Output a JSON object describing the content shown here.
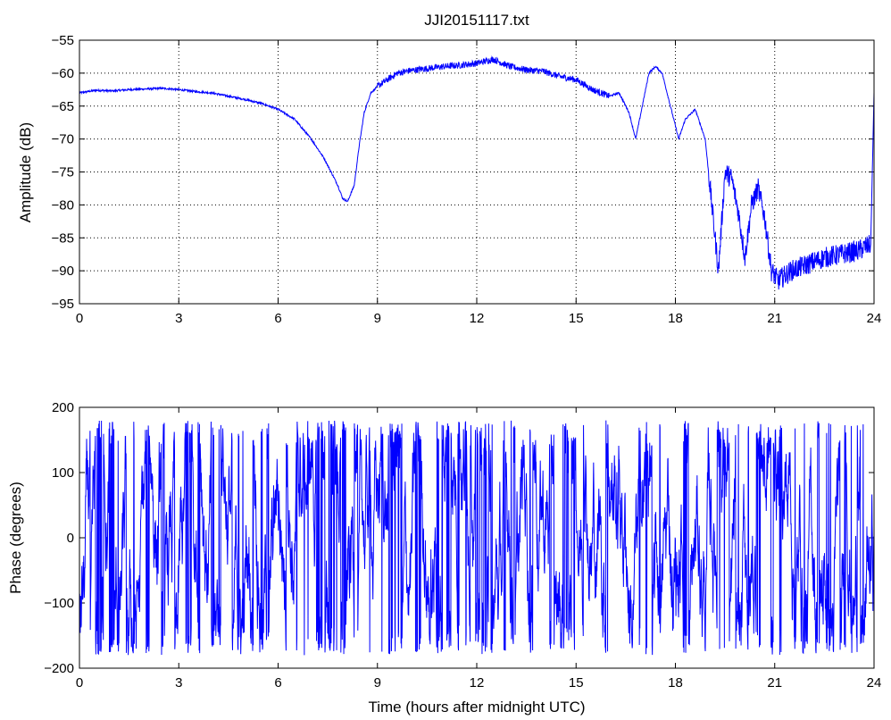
{
  "colors": {
    "line": "#0000ff",
    "axis": "#000000",
    "grid": "#000000",
    "background": "#ffffff"
  },
  "chart_data": [
    {
      "type": "line",
      "title": "JJI20151117.txt",
      "xlabel": "",
      "ylabel": "Amplitude (dB)",
      "xlim": [
        0,
        24
      ],
      "ylim": [
        -95,
        -55
      ],
      "xticks": [
        "0",
        "3",
        "6",
        "9",
        "12",
        "15",
        "18",
        "21",
        "24"
      ],
      "yticks": [
        "-95",
        "-90",
        "-85",
        "-80",
        "-75",
        "-70",
        "-65",
        "-60",
        "-55"
      ],
      "grid": true,
      "x": [
        0,
        0.5,
        1,
        1.5,
        2,
        2.5,
        3,
        3.5,
        4,
        4.5,
        5,
        5.5,
        6,
        6.5,
        7,
        7.4,
        7.8,
        7.95,
        8.1,
        8.3,
        8.45,
        8.6,
        8.8,
        9.0,
        9.3,
        9.6,
        10,
        10.5,
        11,
        11.5,
        12,
        12.5,
        13,
        13.5,
        14,
        14.5,
        15,
        15.5,
        16,
        16.3,
        16.6,
        16.8,
        17.0,
        17.2,
        17.4,
        17.6,
        17.9,
        18.1,
        18.3,
        18.6,
        18.9,
        19.1,
        19.3,
        19.5,
        19.7,
        19.9,
        20.1,
        20.3,
        20.5,
        20.7,
        20.9,
        21.1,
        21.5,
        22,
        22.5,
        23,
        23.5,
        23.9,
        24
      ],
      "y": [
        -63,
        -62.6,
        -62.7,
        -62.5,
        -62.4,
        -62.3,
        -62.5,
        -62.8,
        -63,
        -63.5,
        -64,
        -64.6,
        -65.5,
        -67,
        -70,
        -73,
        -77,
        -79,
        -79.5,
        -77,
        -71,
        -66,
        -63,
        -62,
        -61,
        -60,
        -59.6,
        -59.3,
        -59,
        -58.8,
        -58.5,
        -57.9,
        -59,
        -59.5,
        -59.7,
        -60.5,
        -61,
        -62.5,
        -63.5,
        -63,
        -66,
        -70,
        -65,
        -60,
        -59,
        -60,
        -66,
        -70,
        -67,
        -65.5,
        -70,
        -80,
        -90,
        -75,
        -76,
        -81,
        -88,
        -80,
        -77.5,
        -82,
        -90,
        -91.5,
        -90,
        -89,
        -88,
        -87.5,
        -87,
        -86,
        -63
      ]
    },
    {
      "type": "line",
      "title": "",
      "xlabel": "Time (hours after midnight UTC)",
      "ylabel": "Phase (degrees)",
      "xlim": [
        0,
        24
      ],
      "ylim": [
        -200,
        200
      ],
      "xticks": [
        "0",
        "3",
        "6",
        "9",
        "12",
        "15",
        "18",
        "21",
        "24"
      ],
      "yticks": [
        "-200",
        "-100",
        "0",
        "100",
        "200"
      ],
      "grid": false,
      "note": "phase wraps rapidly between -180 and +180 degrees throughout the day"
    }
  ]
}
